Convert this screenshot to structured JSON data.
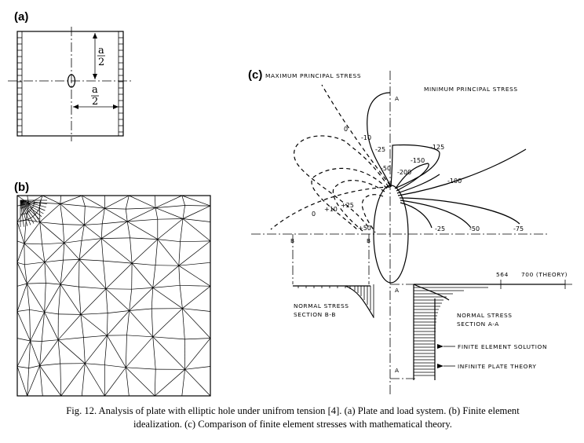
{
  "panels": {
    "a": {
      "label": "(a)",
      "dim_num": "a",
      "dim_den": "2"
    },
    "b": {
      "label": "(b)"
    },
    "c": {
      "label": "(c)",
      "max_principal": "MAXIMUM PRINCIPAL STRESS",
      "min_principal": "MINIMUM PRINCIPAL STRESS",
      "section_a": "A",
      "section_b": "B",
      "contours_left": [
        "0",
        "-10",
        "-25",
        "-50",
        "0",
        "+10",
        "+25",
        "+50"
      ],
      "contours_right": [
        "-125",
        "-150",
        "-200",
        "-100",
        "-25",
        "-50",
        "-75"
      ],
      "scale_564": "564",
      "scale_700": "700 (THEORY)",
      "normal_stress_bb": [
        "NORMAL STRESS",
        "SECTION B-B"
      ],
      "normal_stress_aa": [
        "NORMAL STRESS",
        "SECTION A-A"
      ],
      "legend_fe": "FINITE ELEMENT SOLUTION",
      "legend_inf": "INFINITE PLATE THEORY"
    }
  },
  "caption": {
    "line1": "Fig. 12. Analysis of plate with elliptic hole under unifrom tension [4]. (a) Plate and load system. (b) Finite element",
    "line2": "idealization. (c) Comparison of finite element stresses with mathematical theory."
  }
}
